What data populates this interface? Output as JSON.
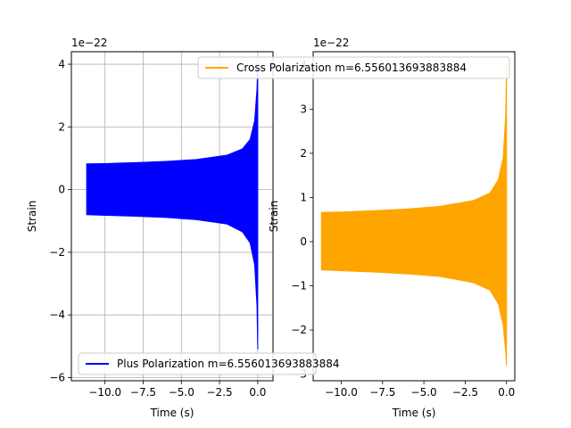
{
  "chart_data": [
    {
      "type": "area",
      "series": [
        {
          "name": "Plus Polarization m=6.556013693883884",
          "color": "#0000ff",
          "x": [
            -11.2,
            -10,
            -8,
            -6,
            -4,
            -2,
            -1,
            -0.5,
            -0.2,
            -0.05,
            0.0
          ],
          "upper": [
            0.82,
            0.83,
            0.86,
            0.9,
            0.96,
            1.1,
            1.3,
            1.6,
            2.2,
            3.2,
            4.0
          ],
          "lower": [
            -0.8,
            -0.82,
            -0.85,
            -0.89,
            -0.96,
            -1.1,
            -1.35,
            -1.7,
            -2.4,
            -3.7,
            -5.1
          ]
        }
      ],
      "legend_label": "Plus Polarization m=6.556013693883884",
      "legend_position": "lower center",
      "xlabel": "Time (s)",
      "ylabel": "Strain",
      "offset_text": "1e−22",
      "xlim": [
        -12.2,
        1.0
      ],
      "ylim": [
        -6.1,
        4.4
      ],
      "xticks": [
        -10,
        -7.5,
        -5,
        -2.5,
        0
      ],
      "xtick_labels": [
        "−10.0",
        "−7.5",
        "−5.0",
        "−2.5",
        "0.0"
      ],
      "yticks": [
        -6,
        -4,
        -2,
        0,
        2,
        4
      ],
      "ytick_labels": [
        "−6",
        "−4",
        "−2",
        "0",
        "2",
        "4"
      ],
      "grid": true
    },
    {
      "type": "area",
      "series": [
        {
          "name": "Cross Polarization m=6.556013693883884",
          "color": "#ffa500",
          "x": [
            -11.2,
            -10,
            -8,
            -6,
            -4,
            -2,
            -1,
            -0.5,
            -0.2,
            -0.05,
            0.0
          ],
          "upper": [
            0.66,
            0.67,
            0.7,
            0.74,
            0.8,
            0.93,
            1.1,
            1.4,
            1.9,
            2.9,
            4.0
          ],
          "lower": [
            -0.64,
            -0.66,
            -0.69,
            -0.73,
            -0.79,
            -0.93,
            -1.1,
            -1.4,
            -1.9,
            -2.5,
            -2.8
          ]
        }
      ],
      "legend_label": "Cross Polarization m=6.556013693883884",
      "legend_position": "upper center",
      "xlabel": "Time (s)",
      "ylabel": "Strain",
      "offset_text": "1e−22",
      "xlim": [
        -11.7,
        0.5
      ],
      "ylim": [
        -3.15,
        4.3
      ],
      "xticks": [
        -10,
        -7.5,
        -5,
        -2.5,
        0
      ],
      "xtick_labels": [
        "−10.0",
        "−7.5",
        "−5.0",
        "−2.5",
        "0.0"
      ],
      "yticks": [
        -3,
        -2,
        -1,
        0,
        1,
        2,
        3,
        4
      ],
      "ytick_labels": [
        "−3",
        "−2",
        "−1",
        "0",
        "1",
        "2",
        "3",
        "4"
      ],
      "grid": false
    }
  ]
}
